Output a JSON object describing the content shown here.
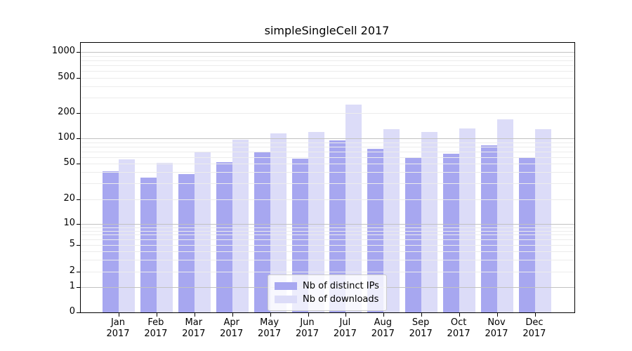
{
  "title": "simpleSingleCell 2017",
  "colors": {
    "ips": "#a7a7f0",
    "downloads": "#dcdcf8",
    "grid_major": "#c2c2c2",
    "grid_minor": "#ececec",
    "axis": "#000000"
  },
  "legend": {
    "items": [
      {
        "label": "Nb of distinct IPs",
        "color_key": "ips"
      },
      {
        "label": "Nb of downloads",
        "color_key": "downloads"
      }
    ]
  },
  "y_axis": {
    "ticks": [
      0,
      1,
      2,
      5,
      10,
      20,
      50,
      100,
      200,
      500,
      1000
    ]
  },
  "x_axis": {
    "months": [
      "Jan",
      "Feb",
      "Mar",
      "Apr",
      "May",
      "Jun",
      "Jul",
      "Aug",
      "Sep",
      "Oct",
      "Nov",
      "Dec"
    ],
    "year": "2017"
  },
  "chart_data": {
    "type": "bar",
    "title": "simpleSingleCell 2017",
    "yscale": "symlog",
    "ylim": [
      0,
      1000
    ],
    "y_ticks": [
      0,
      1,
      2,
      5,
      10,
      20,
      50,
      100,
      200,
      500,
      1000
    ],
    "grid": "minor log gridlines, drawn above bars",
    "legend_position": "lower center",
    "categories": [
      "Jan 2017",
      "Feb 2017",
      "Mar 2017",
      "Apr 2017",
      "May 2017",
      "Jun 2017",
      "Jul 2017",
      "Aug 2017",
      "Sep 2017",
      "Oct 2017",
      "Nov 2017",
      "Dec 2017"
    ],
    "series": [
      {
        "name": "Nb of distinct IPs",
        "key": "ips",
        "values": [
          41,
          35,
          38,
          52,
          69,
          57,
          94,
          75,
          60,
          65,
          82,
          60
        ]
      },
      {
        "name": "Nb of downloads",
        "key": "downloads",
        "values": [
          56,
          51,
          70,
          97,
          114,
          119,
          250,
          128,
          118,
          131,
          168,
          128
        ]
      }
    ]
  }
}
